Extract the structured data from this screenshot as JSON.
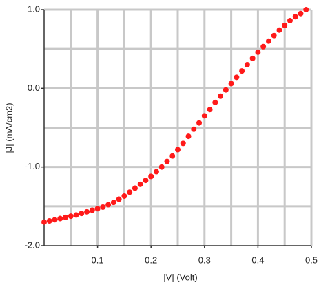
{
  "chart_data": {
    "type": "scatter",
    "x_label": "|V| (Volt)",
    "y_label": "|J| (mA/cm2)",
    "xlim": [
      0,
      0.5
    ],
    "ylim": [
      -2,
      1
    ],
    "xticks": [
      0.1,
      0.2,
      0.3,
      0.4,
      0.5
    ],
    "yticks": [
      {
        "value": -2,
        "label": "-2.0"
      },
      {
        "value": -1,
        "label": "-1.0"
      },
      {
        "value": 0,
        "label": "0.0"
      },
      {
        "value": 1,
        "label": "1.0"
      }
    ],
    "xgrid": [
      0.05,
      0.1,
      0.15,
      0.2,
      0.25,
      0.3,
      0.35,
      0.4,
      0.45,
      0.5
    ],
    "ygrid": [
      -1.5,
      -1,
      -0.5,
      0,
      0.5,
      1
    ],
    "grid": true,
    "color": "#ff1a1a",
    "x": [
      0,
      0.01,
      0.02,
      0.03,
      0.04,
      0.05,
      0.06,
      0.07,
      0.08,
      0.09,
      0.1,
      0.11,
      0.12,
      0.13,
      0.14,
      0.15,
      0.16,
      0.17,
      0.18,
      0.19,
      0.2,
      0.21,
      0.22,
      0.23,
      0.24,
      0.25,
      0.26,
      0.27,
      0.28,
      0.29,
      0.3,
      0.31,
      0.32,
      0.33,
      0.34,
      0.35,
      0.36,
      0.37,
      0.38,
      0.39,
      0.4,
      0.41,
      0.42,
      0.43,
      0.44,
      0.45,
      0.46,
      0.47,
      0.48,
      0.49
    ],
    "values": [
      -1.7,
      -1.685,
      -1.67,
      -1.655,
      -1.64,
      -1.625,
      -1.61,
      -1.59,
      -1.57,
      -1.55,
      -1.53,
      -1.51,
      -1.48,
      -1.45,
      -1.41,
      -1.37,
      -1.32,
      -1.27,
      -1.22,
      -1.17,
      -1.12,
      -1.06,
      -1.0,
      -0.93,
      -0.86,
      -0.78,
      -0.7,
      -0.61,
      -0.52,
      -0.44,
      -0.35,
      -0.27,
      -0.18,
      -0.1,
      -0.02,
      0.06,
      0.14,
      0.22,
      0.3,
      0.38,
      0.46,
      0.53,
      0.6,
      0.67,
      0.74,
      0.8,
      0.86,
      0.91,
      0.95,
      1.0
    ]
  }
}
